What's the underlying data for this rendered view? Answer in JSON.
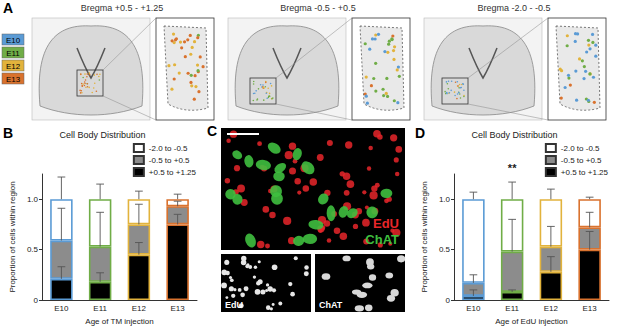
{
  "figure": {
    "panel_a": {
      "letter": "A",
      "legend": [
        {
          "label": "E10",
          "color": "#5b9bd5"
        },
        {
          "label": "E11",
          "color": "#70ad47"
        },
        {
          "label": "E12",
          "color": "#e2b33c"
        },
        {
          "label": "E13",
          "color": "#d9722e"
        }
      ],
      "sections": [
        "Bregma +0.5 - +1.25",
        "Bregma -0.5 - +0.5",
        "Bregma -2.0 - -0.5"
      ]
    },
    "panel_c": {
      "letter": "C",
      "labels": [
        {
          "text": "EdU",
          "color": "#e8262a"
        },
        {
          "text": "ChAT",
          "color": "#3fbf3f"
        }
      ],
      "insets": [
        "EdU",
        "ChAT"
      ]
    }
  },
  "chart_data": [
    {
      "panel": "B",
      "type": "bar",
      "stacked": true,
      "title": "Cell Body Distribution",
      "x_label": "Age of TM injection",
      "y_label": "Proportion of cells within region",
      "categories": [
        "E10",
        "E11",
        "E12",
        "E13"
      ],
      "colors": [
        "#5b9bd5",
        "#70ad47",
        "#e2b33c",
        "#d9722e"
      ],
      "ylim": [
        0,
        1.25
      ],
      "yticks": [
        0,
        0.5,
        {
          "value": 1,
          "label": "1.0"
        }
      ],
      "grid": false,
      "legend": "upper right",
      "series": [
        {
          "name": "-2.0 to -0.5",
          "color": "#ffffff",
          "values": [
            0.41,
            0.47,
            0.25,
            0.07
          ],
          "errors": [
            0.22,
            0.15,
            0.08,
            0.05
          ]
        },
        {
          "name": "-0.5 to +0.5",
          "color": "#8c8c8c",
          "values": [
            0.38,
            0.35,
            0.3,
            0.18
          ],
          "errors": [
            0.32,
            0.34,
            0.2,
            0.05
          ]
        },
        {
          "name": "+0.5 to +1.25",
          "color": "#000000",
          "values": [
            0.21,
            0.18,
            0.45,
            0.75
          ],
          "errors": [
            0.12,
            0.09,
            0.12,
            0.1
          ]
        }
      ]
    },
    {
      "panel": "D",
      "type": "bar",
      "stacked": true,
      "title": "Cell Body Distribution",
      "x_label": "Age of EdU injection",
      "y_label": "Proportion of cells within region",
      "annotation": "**",
      "categories": [
        "E10",
        "E11",
        "E12",
        "E13"
      ],
      "colors": [
        "#5b9bd5",
        "#70ad47",
        "#e2b33c",
        "#d9722e"
      ],
      "ylim": [
        0,
        1.25
      ],
      "yticks": [
        0,
        0.5,
        {
          "value": 1,
          "label": "1.0"
        }
      ],
      "grid": false,
      "legend": "upper right",
      "series": [
        {
          "name": "-2.0 to -0.5",
          "color": "#ffffff",
          "values": [
            0.83,
            0.52,
            0.47,
            0.28
          ],
          "errors": [
            0.07,
            0.17,
            0.1,
            0.02
          ]
        },
        {
          "name": "-0.5 to +0.5",
          "color": "#8c8c8c",
          "values": [
            0.13,
            0.4,
            0.25,
            0.22
          ],
          "errors": [
            0.08,
            0.32,
            0.2,
            0.15
          ]
        },
        {
          "name": "+0.5 to +1.25",
          "color": "#000000",
          "values": [
            0.04,
            0.08,
            0.28,
            0.5
          ],
          "errors": [
            0.06,
            0.02,
            0.15,
            0.18
          ]
        }
      ]
    }
  ]
}
